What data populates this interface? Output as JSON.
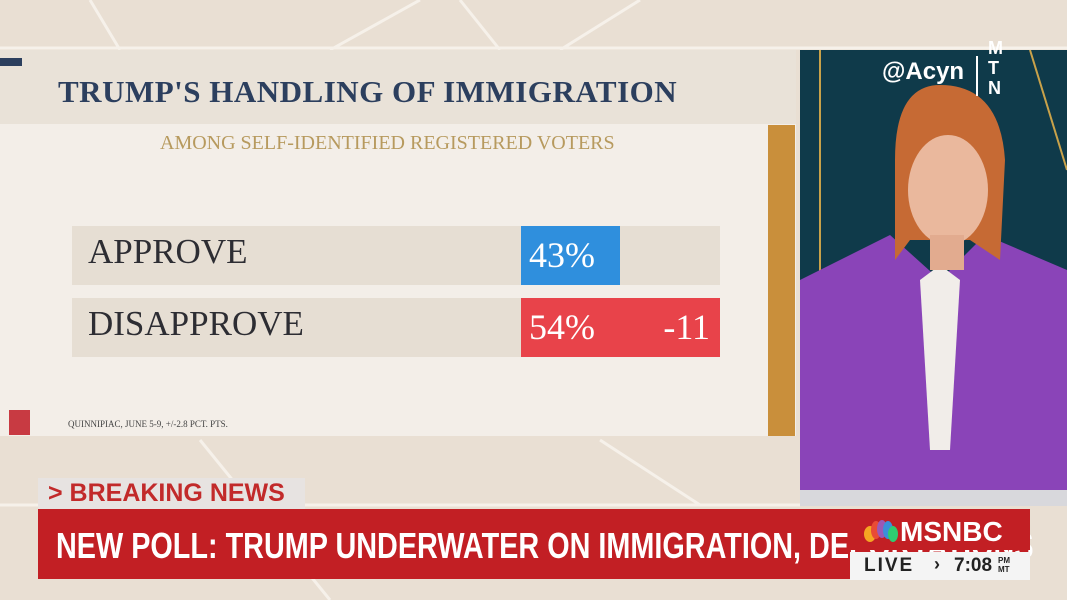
{
  "graphic": {
    "title": "TRUMP'S HANDLING OF IMMIGRATION",
    "subtitle": "AMONG SELF-IDENTIFIED REGISTERED VOTERS",
    "rows": [
      {
        "label": "APPROVE",
        "value": "43%"
      },
      {
        "label": "DISAPPROVE",
        "value": "54%",
        "net": "-11"
      }
    ],
    "source": "QUINNIPIAC, JUNE 5-9, +/-2.8 PCT. PTS."
  },
  "watermark": {
    "handle": "@Acyn",
    "logo": "MTN"
  },
  "ticker": {
    "tag": "> BREAKING NEWS",
    "headline": "NEW POLL: TRUMP UNDERWATER ON IMMIGRATION, DEPORTATIONS",
    "network": "MSNBC",
    "status": "LIVE",
    "time": "7:08",
    "time_suffix": "PM MT"
  }
}
